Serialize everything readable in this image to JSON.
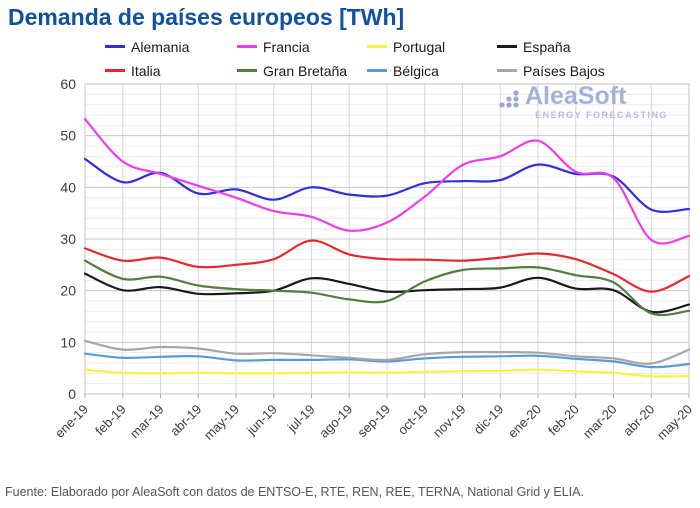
{
  "title": "Demanda de países europeos [TWh]",
  "watermark": {
    "brand": "AleaSoft",
    "tagline": "ENERGY FORECASTING"
  },
  "source": "Fuente: Elaborado por AleaSoft con datos de ENTSO-E, RTE, REN, REE, TERNA, National Grid y ELIA.",
  "colors": {
    "title": "#1250A2",
    "watermark": "#9BABD5",
    "axis_text": "#3C3C3C",
    "grid_minor": "#ECECEC",
    "grid_major": "#C8C8C8",
    "grid_vertical": "#D7D7D7",
    "plot_border": "#C0C0C0"
  },
  "chart_data": {
    "type": "line",
    "title": "Demanda de países europeos [TWh]",
    "x": [
      "ene-19",
      "feb-19",
      "mar-19",
      "abr-19",
      "may-19",
      "jun-19",
      "jul-19",
      "ago-19",
      "sep-19",
      "oct-19",
      "nov-19",
      "dic-19",
      "ene-20",
      "feb-20",
      "mar-20",
      "abr-20",
      "may-20"
    ],
    "series": [
      {
        "name": "Alemania",
        "color": "#2E2EDC",
        "values": [
          45.5,
          41.0,
          42.8,
          38.8,
          39.6,
          37.6,
          40.0,
          38.6,
          38.4,
          40.8,
          41.2,
          41.4,
          44.4,
          42.6,
          42.1,
          35.7,
          35.8
        ]
      },
      {
        "name": "Francia",
        "color": "#EE3CEE",
        "values": [
          53.2,
          45.0,
          42.6,
          40.3,
          38.0,
          35.4,
          34.3,
          31.6,
          33.2,
          38.2,
          44.3,
          46.0,
          49.0,
          43.0,
          41.8,
          29.8,
          30.6
        ]
      },
      {
        "name": "Portugal",
        "color": "#FAF23C",
        "values": [
          4.7,
          4.1,
          4.0,
          4.1,
          4.0,
          4.0,
          4.1,
          4.2,
          4.1,
          4.3,
          4.4,
          4.5,
          4.7,
          4.4,
          4.1,
          3.4,
          3.5
        ]
      },
      {
        "name": "España",
        "color": "#1A1A1A",
        "values": [
          23.3,
          20.1,
          20.7,
          19.4,
          19.5,
          20.0,
          22.4,
          21.3,
          19.8,
          20.1,
          20.3,
          20.6,
          22.5,
          20.4,
          20.1,
          15.9,
          17.3
        ]
      },
      {
        "name": "Italia",
        "color": "#E32B2B",
        "values": [
          28.2,
          25.8,
          26.4,
          24.6,
          25.0,
          26.1,
          29.7,
          27.0,
          26.1,
          26.0,
          25.8,
          26.4,
          27.2,
          26.1,
          23.2,
          19.8,
          22.8
        ]
      },
      {
        "name": "Gran Bretaña",
        "color": "#557D3E",
        "values": [
          25.8,
          22.3,
          22.7,
          21.0,
          20.3,
          20.0,
          19.6,
          18.3,
          18.0,
          21.8,
          24.0,
          24.3,
          24.5,
          23.0,
          21.6,
          15.6,
          16.1
        ]
      },
      {
        "name": "Bélgica",
        "color": "#5B9BD5",
        "values": [
          7.8,
          7.0,
          7.2,
          7.3,
          6.5,
          6.6,
          6.6,
          6.7,
          6.3,
          6.9,
          7.2,
          7.3,
          7.4,
          6.8,
          6.3,
          5.2,
          5.8
        ]
      },
      {
        "name": "Países Bajos",
        "color": "#A6A6A6",
        "values": [
          10.3,
          8.6,
          9.1,
          8.8,
          7.8,
          7.9,
          7.5,
          7.0,
          6.6,
          7.7,
          8.1,
          8.1,
          8.0,
          7.3,
          6.9,
          5.9,
          8.6
        ]
      }
    ],
    "legend_order": [
      "Alemania",
      "Francia",
      "Portugal",
      "España",
      "Italia",
      "Gran Bretaña",
      "Bélgica",
      "Países Bajos"
    ],
    "legend_position": "top",
    "xlabel": "",
    "ylabel": "",
    "ylim": [
      0,
      60
    ],
    "y_ticks": [
      0,
      10,
      20,
      30,
      40,
      50,
      60
    ],
    "y_minor_step": 2,
    "grid": true
  }
}
